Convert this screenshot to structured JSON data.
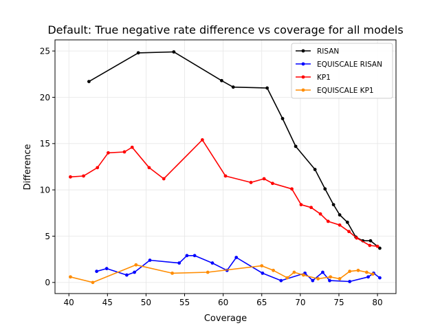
{
  "chart_data": {
    "type": "line",
    "title": "Default: True negative rate difference vs coverage for all models",
    "xlabel": "Coverage",
    "ylabel": "Difference",
    "xlim": [
      38.2,
      82.4
    ],
    "ylim": [
      -1.2,
      26.2
    ],
    "xticks": [
      40,
      45,
      50,
      55,
      60,
      65,
      70,
      75,
      80
    ],
    "yticks": [
      0,
      5,
      10,
      15,
      20,
      25
    ],
    "grid": true,
    "legend_position": "top-right",
    "series": [
      {
        "name": "RISAN",
        "color": "#000000",
        "x": [
          42.6,
          49.0,
          53.6,
          59.8,
          61.3,
          65.7,
          67.7,
          69.4,
          71.9,
          73.2,
          74.3,
          75.1,
          76.1,
          77.2,
          78.1,
          79.1,
          80.3
        ],
        "y": [
          21.7,
          24.8,
          24.9,
          21.8,
          21.1,
          21.0,
          17.7,
          14.7,
          12.2,
          10.1,
          8.4,
          7.3,
          6.5,
          4.9,
          4.5,
          4.5,
          3.7
        ]
      },
      {
        "name": "EQUISCALE RISAN",
        "color": "#0000ff",
        "x": [
          43.6,
          44.9,
          47.5,
          48.5,
          50.5,
          54.3,
          55.3,
          56.3,
          58.6,
          60.5,
          61.7,
          65.1,
          67.5,
          70.6,
          71.6,
          72.9,
          73.8,
          76.4,
          78.8,
          79.5,
          80.3
        ],
        "y": [
          1.2,
          1.5,
          0.8,
          1.1,
          2.4,
          2.1,
          2.9,
          2.9,
          2.1,
          1.3,
          2.7,
          1.0,
          0.2,
          1.0,
          0.2,
          1.1,
          0.2,
          0.1,
          0.6,
          1.0,
          0.5
        ]
      },
      {
        "name": "KP1",
        "color": "#ff0000",
        "x": [
          40.2,
          41.9,
          43.7,
          45.1,
          47.2,
          48.2,
          50.4,
          52.3,
          57.3,
          60.3,
          63.6,
          65.3,
          66.4,
          68.9,
          70.1,
          71.4,
          72.6,
          73.6,
          75.1,
          76.3,
          77.3,
          79.0,
          80.0
        ],
        "y": [
          11.4,
          11.5,
          12.4,
          14.0,
          14.1,
          14.6,
          12.4,
          11.2,
          15.4,
          11.5,
          10.8,
          11.2,
          10.7,
          10.1,
          8.4,
          8.1,
          7.4,
          6.6,
          6.2,
          5.5,
          4.8,
          4.0,
          3.9
        ]
      },
      {
        "name": "EQUISCALE KP1",
        "color": "#ff8c00",
        "x": [
          40.2,
          43.1,
          48.7,
          53.4,
          58.0,
          65.0,
          66.5,
          68.3,
          69.2,
          70.4,
          72.3,
          73.9,
          75.1,
          76.4,
          77.5,
          78.6,
          79.4
        ],
        "y": [
          0.6,
          0.0,
          1.9,
          1.0,
          1.1,
          1.8,
          1.3,
          0.5,
          1.1,
          0.8,
          0.4,
          0.6,
          0.4,
          1.2,
          1.3,
          1.1,
          0.9
        ]
      }
    ]
  }
}
